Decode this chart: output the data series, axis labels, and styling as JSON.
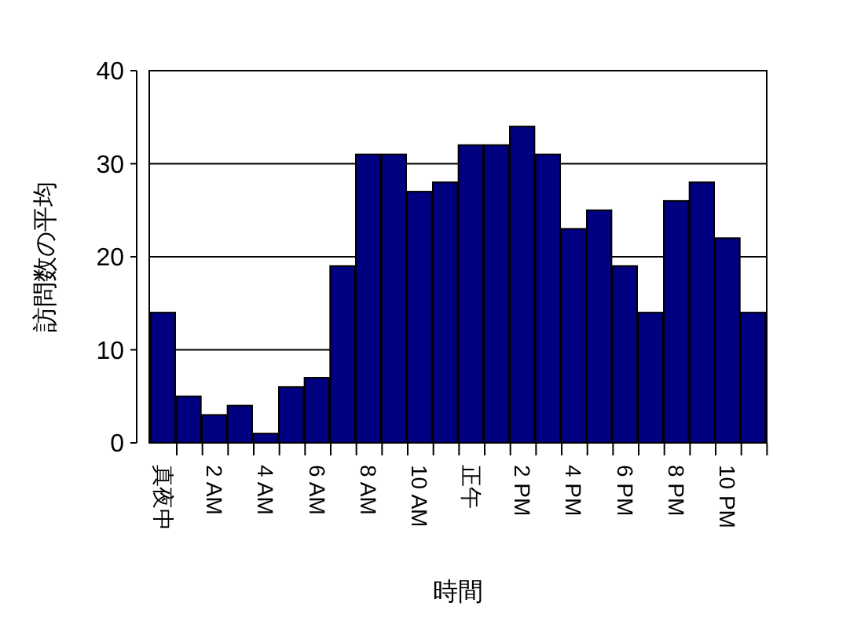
{
  "chart_data": {
    "type": "bar",
    "xlabel": "時間",
    "ylabel": "訪問数の平均",
    "categories": [
      "真夜中",
      null,
      "2 AM",
      null,
      "4 AM",
      null,
      "6 AM",
      null,
      "8 AM",
      null,
      "10 AM",
      null,
      "正午",
      null,
      "2 PM",
      null,
      "4 PM",
      null,
      "6 PM",
      null,
      "8 PM",
      null,
      "10 PM",
      null
    ],
    "values": [
      14,
      5,
      3,
      4,
      1,
      6,
      7,
      19,
      31,
      31,
      27,
      28,
      32,
      32,
      34,
      31,
      23,
      25,
      19,
      14,
      26,
      28,
      22,
      14
    ],
    "color": "#000080",
    "ylim": [
      0,
      40
    ],
    "yticks": [
      0,
      10,
      20,
      30,
      40
    ],
    "grid": "y"
  }
}
